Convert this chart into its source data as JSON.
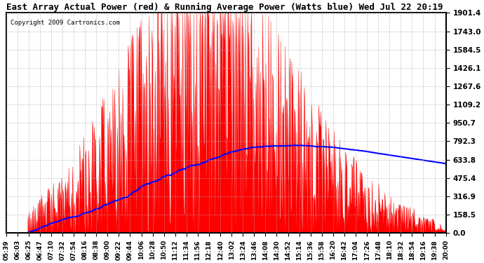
{
  "title": "East Array Actual Power (red) & Running Average Power (Watts blue) Wed Jul 22 20:19",
  "copyright": "Copyright 2009 Cartronics.com",
  "ylabel_right_ticks": [
    0.0,
    158.5,
    316.9,
    475.4,
    633.8,
    792.3,
    950.7,
    1109.2,
    1267.6,
    1426.1,
    1584.5,
    1743.0,
    1901.4
  ],
  "ymax": 1901.4,
  "ymin": 0.0,
  "bar_color": "#ff0000",
  "avg_color": "#0000ff",
  "bg_color": "#ffffff",
  "grid_color": "#aaaaaa",
  "title_bg": "#ffffff",
  "figsize": [
    6.9,
    3.75
  ],
  "dpi": 100,
  "x_labels": [
    "05:39",
    "06:03",
    "06:25",
    "06:47",
    "07:10",
    "07:32",
    "07:54",
    "08:16",
    "08:38",
    "09:00",
    "09:22",
    "09:44",
    "10:06",
    "10:28",
    "10:50",
    "11:12",
    "11:34",
    "11:56",
    "12:18",
    "12:40",
    "13:02",
    "13:24",
    "13:46",
    "14:08",
    "14:30",
    "14:52",
    "15:14",
    "15:36",
    "15:58",
    "16:20",
    "16:42",
    "17:04",
    "17:26",
    "17:48",
    "18:10",
    "18:32",
    "18:54",
    "19:16",
    "19:38",
    "20:00"
  ]
}
